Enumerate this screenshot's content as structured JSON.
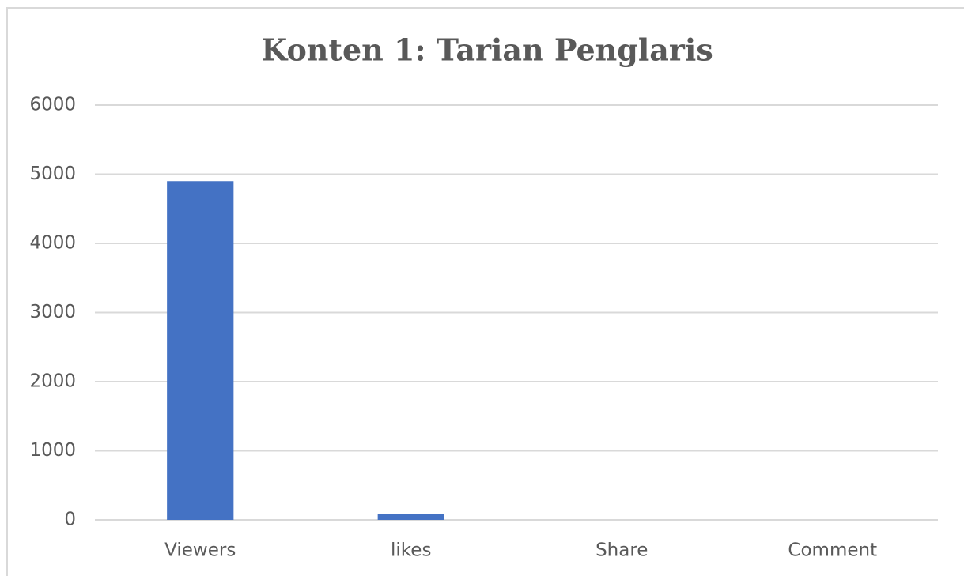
{
  "chart_data": {
    "type": "bar",
    "title": "Konten 1: Tarian Penglaris",
    "categories": [
      "Viewers",
      "likes",
      "Share",
      "Comment"
    ],
    "values": [
      4900,
      90,
      0,
      0
    ],
    "color": "#4472c4",
    "ylim": [
      0,
      6000
    ],
    "yticks": [
      0,
      1000,
      2000,
      3000,
      4000,
      5000,
      6000
    ],
    "grid": true
  }
}
